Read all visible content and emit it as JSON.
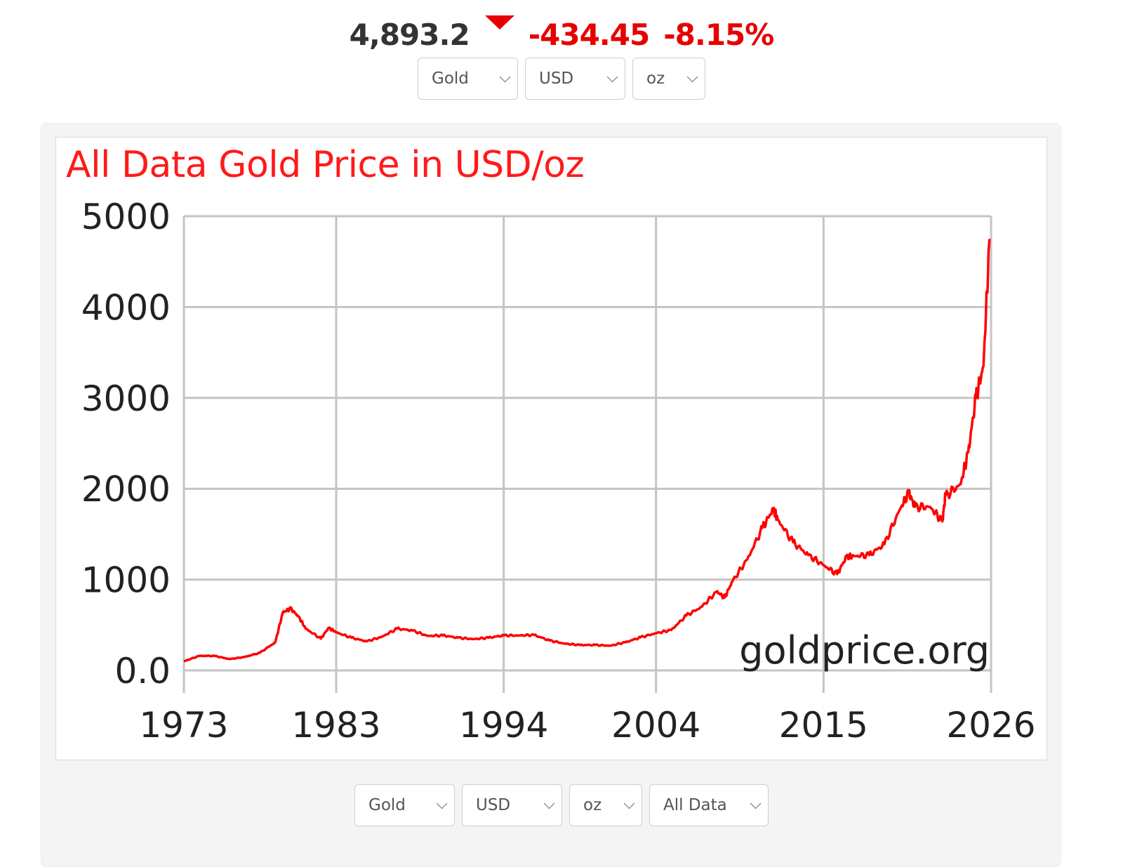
{
  "quote": {
    "price": "4,893.2",
    "direction": "down",
    "change": "-434.45",
    "change_percent": "-8.15%",
    "down_color": "#e60000"
  },
  "top_selectors": {
    "metal": "Gold",
    "currency": "USD",
    "unit": "oz"
  },
  "bottom_selectors": {
    "metal": "Gold",
    "currency": "USD",
    "unit": "oz",
    "range": "All Data"
  },
  "chart_data": {
    "type": "line",
    "title": "All Data Gold Price in USD/oz",
    "xlabel": "",
    "ylabel": "",
    "xlim": [
      1973,
      2026
    ],
    "ylim": [
      0,
      5000
    ],
    "x_ticks": [
      "1973",
      "1983",
      "1994",
      "2004",
      "2015",
      "2026"
    ],
    "y_ticks": [
      "0.0",
      "1000",
      "2000",
      "3000",
      "4000",
      "5000"
    ],
    "grid": true,
    "watermark": "goldprice.org",
    "line_color": "#ff0000",
    "series": [
      {
        "name": "Gold Price (USD/oz)",
        "x": [
          1973,
          1974,
          1975,
          1976,
          1977,
          1978,
          1979,
          1979.5,
          1980,
          1980.5,
          1981,
          1982,
          1982.5,
          1983,
          1984,
          1985,
          1986,
          1987,
          1988,
          1989,
          1990,
          1991,
          1992,
          1993,
          1994,
          1995,
          1996,
          1997,
          1998,
          1999,
          2000,
          2001,
          2002,
          2003,
          2004,
          2005,
          2006,
          2007,
          2008,
          2008.5,
          2009,
          2010,
          2011,
          2011.7,
          2012,
          2013,
          2014,
          2015,
          2015.9,
          2016.5,
          2017,
          2018,
          2019,
          2020,
          2020.6,
          2021,
          2022,
          2022.8,
          2023,
          2024,
          2024.5,
          2025,
          2025.5,
          2025.9
        ],
        "values": [
          100,
          160,
          160,
          125,
          148,
          195,
          310,
          640,
          680,
          600,
          460,
          350,
          470,
          420,
          360,
          320,
          370,
          460,
          440,
          380,
          385,
          360,
          345,
          360,
          385,
          385,
          390,
          330,
          295,
          280,
          280,
          272,
          310,
          365,
          410,
          445,
          605,
          700,
          870,
          800,
          975,
          1225,
          1570,
          1780,
          1660,
          1410,
          1270,
          1160,
          1060,
          1250,
          1260,
          1270,
          1390,
          1770,
          1960,
          1800,
          1800,
          1640,
          1920,
          2050,
          2400,
          3000,
          3350,
          4750
        ]
      }
    ]
  },
  "icons": {
    "dropdown": "chevron-down-icon",
    "direction": "triangle-down-icon"
  }
}
